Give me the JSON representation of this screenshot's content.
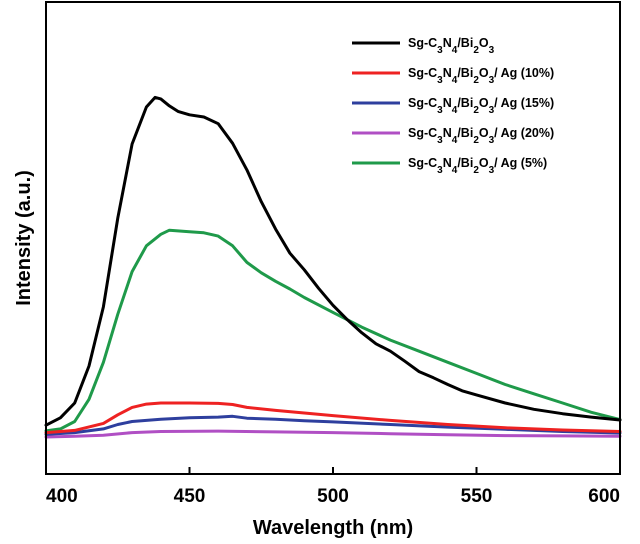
{
  "chart_data": {
    "type": "line",
    "xlabel": "Wavelength (nm)",
    "ylabel": "Intensity (a.u.)",
    "xlim": [
      400,
      600
    ],
    "ylim": [
      0,
      100
    ],
    "xticks": [
      400,
      450,
      500,
      550,
      600
    ],
    "grid": false,
    "legend_position": "top-right",
    "y_tick_labels_shown": false,
    "series": [
      {
        "name": "Sg-C3N4/Bi2O3",
        "legend_parts": [
          [
            "Sg-C",
            ""
          ],
          [
            "3",
            "sub"
          ],
          [
            "N",
            ""
          ],
          [
            "4",
            "sub"
          ],
          [
            "/Bi",
            ""
          ],
          [
            "2",
            "sub"
          ],
          [
            "O",
            ""
          ],
          [
            "3",
            "sub"
          ]
        ],
        "color": "#000000",
        "points": [
          [
            400,
            4
          ],
          [
            405,
            6
          ],
          [
            410,
            10
          ],
          [
            415,
            20
          ],
          [
            420,
            36
          ],
          [
            425,
            60
          ],
          [
            430,
            80
          ],
          [
            435,
            90
          ],
          [
            438,
            92.6
          ],
          [
            440,
            92.2
          ],
          [
            443,
            90.3
          ],
          [
            446,
            88.8
          ],
          [
            450,
            87.9
          ],
          [
            455,
            87.3
          ],
          [
            460,
            85.5
          ],
          [
            465,
            80.2
          ],
          [
            470,
            73
          ],
          [
            475,
            64.4
          ],
          [
            480,
            57
          ],
          [
            485,
            50.5
          ],
          [
            490,
            46
          ],
          [
            495,
            41
          ],
          [
            500,
            36.4
          ],
          [
            505,
            32.5
          ],
          [
            510,
            29
          ],
          [
            515,
            26
          ],
          [
            520,
            24
          ],
          [
            525,
            21.3
          ],
          [
            530,
            18.5
          ],
          [
            535,
            16.8
          ],
          [
            540,
            15
          ],
          [
            545,
            13.3
          ],
          [
            550,
            12.2
          ],
          [
            560,
            10
          ],
          [
            570,
            8.3
          ],
          [
            580,
            7.1
          ],
          [
            590,
            6.2
          ],
          [
            600,
            5.4
          ]
        ]
      },
      {
        "name": "Sg-C3N4/Bi2O3/ Ag (10%)",
        "legend_parts": [
          [
            "Sg-C",
            ""
          ],
          [
            "3",
            "sub"
          ],
          [
            "N",
            ""
          ],
          [
            "4",
            "sub"
          ],
          [
            "/Bi",
            ""
          ],
          [
            "2",
            "sub"
          ],
          [
            "O",
            ""
          ],
          [
            "3",
            "sub"
          ],
          [
            "/ Ag (10%)",
            ""
          ]
        ],
        "color": "#ee2222",
        "points": [
          [
            400,
            2
          ],
          [
            410,
            2.6
          ],
          [
            420,
            4.5
          ],
          [
            425,
            6.8
          ],
          [
            430,
            8.8
          ],
          [
            435,
            9.7
          ],
          [
            440,
            10
          ],
          [
            450,
            10
          ],
          [
            460,
            9.9
          ],
          [
            465,
            9.6
          ],
          [
            470,
            8.8
          ],
          [
            480,
            8
          ],
          [
            490,
            7.3
          ],
          [
            500,
            6.6
          ],
          [
            520,
            5.3
          ],
          [
            540,
            4.2
          ],
          [
            560,
            3.3
          ],
          [
            580,
            2.7
          ],
          [
            600,
            2.3
          ]
        ]
      },
      {
        "name": "Sg-C3N4/Bi2O3/ Ag (15%)",
        "legend_parts": [
          [
            "Sg-C",
            ""
          ],
          [
            "3",
            "sub"
          ],
          [
            "N",
            ""
          ],
          [
            "4",
            "sub"
          ],
          [
            "/Bi",
            ""
          ],
          [
            "2",
            "sub"
          ],
          [
            "O",
            ""
          ],
          [
            "3",
            "sub"
          ],
          [
            "/ Ag (15%)",
            ""
          ]
        ],
        "color": "#2e3f9e",
        "points": [
          [
            400,
            1.5
          ],
          [
            410,
            2
          ],
          [
            420,
            3
          ],
          [
            425,
            4.2
          ],
          [
            430,
            5
          ],
          [
            440,
            5.6
          ],
          [
            450,
            6
          ],
          [
            460,
            6.2
          ],
          [
            465,
            6.4
          ],
          [
            470,
            5.9
          ],
          [
            480,
            5.6
          ],
          [
            490,
            5.2
          ],
          [
            500,
            4.9
          ],
          [
            520,
            4.2
          ],
          [
            540,
            3.5
          ],
          [
            560,
            2.9
          ],
          [
            580,
            2.3
          ],
          [
            600,
            1.9
          ]
        ]
      },
      {
        "name": "Sg-C3N4/Bi2O3/ Ag (20%)",
        "legend_parts": [
          [
            "Sg-C",
            ""
          ],
          [
            "3",
            "sub"
          ],
          [
            "N",
            ""
          ],
          [
            "4",
            "sub"
          ],
          [
            "/Bi",
            ""
          ],
          [
            "2",
            "sub"
          ],
          [
            "O",
            ""
          ],
          [
            "3",
            "sub"
          ],
          [
            "/ Ag (20%)",
            ""
          ]
        ],
        "color": "#b04fc4",
        "points": [
          [
            400,
            0.8
          ],
          [
            410,
            1
          ],
          [
            420,
            1.3
          ],
          [
            430,
            2
          ],
          [
            440,
            2.3
          ],
          [
            460,
            2.4
          ],
          [
            480,
            2.2
          ],
          [
            500,
            2
          ],
          [
            520,
            1.7
          ],
          [
            540,
            1.4
          ],
          [
            560,
            1.2
          ],
          [
            580,
            1.1
          ],
          [
            600,
            1
          ]
        ]
      },
      {
        "name": "Sg-C3N4/Bi2O3/ Ag (5%)",
        "legend_parts": [
          [
            "Sg-C",
            ""
          ],
          [
            "3",
            "sub"
          ],
          [
            "N",
            ""
          ],
          [
            "4",
            "sub"
          ],
          [
            "/Bi",
            ""
          ],
          [
            "2",
            "sub"
          ],
          [
            "O",
            ""
          ],
          [
            "3",
            "sub"
          ],
          [
            "/ Ag (5%)",
            ""
          ]
        ],
        "color": "#1f9a4a",
        "points": [
          [
            400,
            2.5
          ],
          [
            405,
            3
          ],
          [
            410,
            5
          ],
          [
            415,
            11
          ],
          [
            420,
            21
          ],
          [
            425,
            34
          ],
          [
            430,
            45.5
          ],
          [
            435,
            52.5
          ],
          [
            440,
            55.6
          ],
          [
            443,
            56.7
          ],
          [
            450,
            56.3
          ],
          [
            455,
            56
          ],
          [
            460,
            55.1
          ],
          [
            465,
            52.5
          ],
          [
            470,
            48
          ],
          [
            475,
            45.2
          ],
          [
            480,
            42.9
          ],
          [
            485,
            40.8
          ],
          [
            490,
            38.5
          ],
          [
            500,
            34.5
          ],
          [
            510,
            30.5
          ],
          [
            520,
            27
          ],
          [
            530,
            24
          ],
          [
            540,
            21
          ],
          [
            550,
            18
          ],
          [
            560,
            15
          ],
          [
            570,
            12.5
          ],
          [
            580,
            10
          ],
          [
            590,
            7.5
          ],
          [
            600,
            5.5
          ]
        ]
      }
    ]
  }
}
